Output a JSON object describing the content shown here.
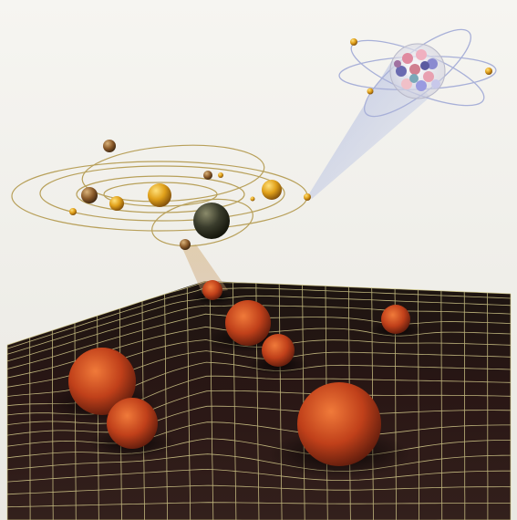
{
  "scene": {
    "sky_color": "#efeee9",
    "grid_floor_color": "#241412",
    "grid_line_color": "#d8cf8e",
    "orbit_color": "#b8a05a",
    "beam_color": "#a7b4d8",
    "sun_color": "#e9a51a",
    "earth_color": "#2b2d22",
    "well_sphere_color": "#c0401a"
  }
}
